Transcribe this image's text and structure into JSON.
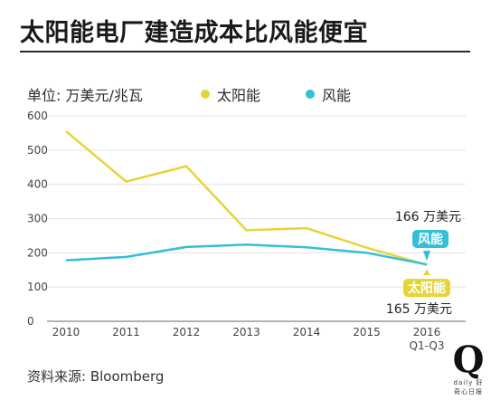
{
  "header": {
    "title": "太阳能电厂建造成本比风能便宜"
  },
  "source": "资料来源: Bloomberg",
  "brand": {
    "logo_letter": "Q",
    "logo_sub": "daily 好奇心日报"
  },
  "colors": {
    "solar": "#e6d43a",
    "wind": "#33bfd8",
    "grid": "#e3e3e3",
    "axis": "#9a9a9a"
  },
  "chart_data": {
    "type": "line",
    "ylabel": "单位: 万美元/兆瓦",
    "categories": [
      "2010",
      "2011",
      "2012",
      "2013",
      "2014",
      "2015",
      "2016"
    ],
    "category_sublabels": [
      "",
      "",
      "",
      "",
      "",
      "",
      "Q1-Q3"
    ],
    "ylim": [
      0,
      600
    ],
    "yticks": [
      0,
      100,
      200,
      300,
      400,
      500,
      600
    ],
    "grid": true,
    "legend_position": "top",
    "series": [
      {
        "name": "太阳能",
        "color": "#e6d43a",
        "values": [
          555,
          408,
          453,
          266,
          272,
          215,
          165
        ]
      },
      {
        "name": "风能",
        "color": "#33bfd8",
        "values": [
          178,
          188,
          217,
          224,
          216,
          200,
          166
        ]
      }
    ],
    "annotations": {
      "wind_value": "166 万美元",
      "wind_tag": "风能",
      "solar_value": "165 万美元",
      "solar_tag": "太阳能"
    }
  }
}
